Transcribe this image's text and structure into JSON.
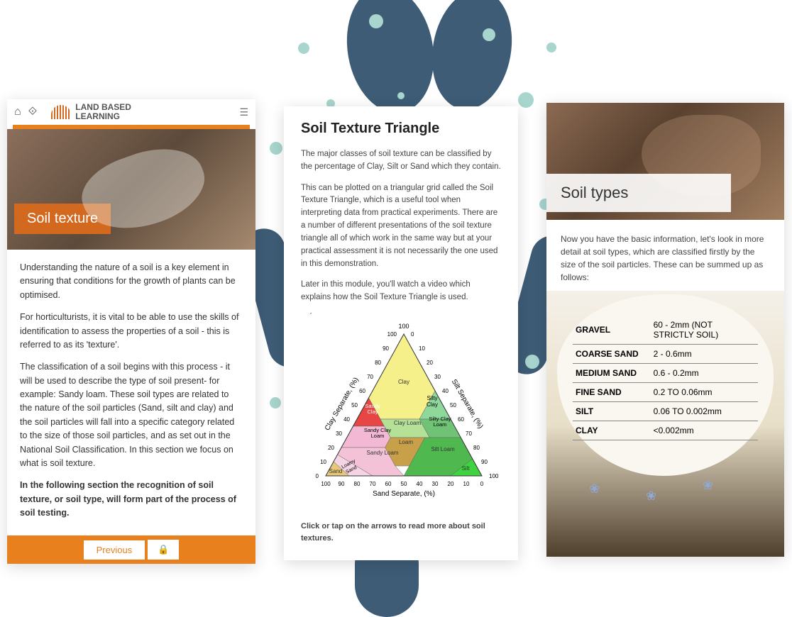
{
  "decorations": {
    "blob_color": "#3e5c76",
    "dot_color": "#a8d5ce"
  },
  "card1": {
    "brand_top": "LAND BASED",
    "brand_bottom": "LEARNING",
    "title": "Soil texture",
    "p1": "Understanding the nature of a soil is a key element in ensuring that conditions for the growth of plants can be optimised.",
    "p2": "For horticulturists, it is vital to be able to use the skills of identification to assess the properties of a soil - this is referred to as its 'texture'.",
    "p3": "The classification of a soil begins with this process - it will be used to describe the type of soil present- for example: Sandy loam. These soil types are related to the nature of the soil particles (Sand, silt and clay) and the soil particles will fall into a specific category related to the size of those soil particles, and as set out in the National Soil Classification. In this section we focus on what is soil texture.",
    "p4": "In the following section the recognition of soil texture, or soil type, will form part of the process of soil testing.",
    "prev_label": "Previous",
    "accent": "#e8801e"
  },
  "card2": {
    "title": "Soil Texture Triangle",
    "p1": "The major classes of soil texture can be classified by the percentage of Clay, Silt or Sand which they contain.",
    "p2": "This can be plotted on a triangular grid called the Soil Texture Triangle, which is a useful tool when interpreting data from practical experiments. There are a number of different presentations of the soil texture triangle all of which work in the same way but at your practical assessment it is not necessarily the one used in this demonstration.",
    "p3": "Later in this module, you'll watch a video which explains how the Soil Texture Triangle is used.",
    "hint": "Click or tap on the arrows to read more about soil textures.",
    "triangle": {
      "axis_top": "100",
      "ticks": [
        "10",
        "20",
        "30",
        "40",
        "50",
        "60",
        "70",
        "80",
        "90",
        "100"
      ],
      "left_label": "Clay Separate, (%)",
      "right_label": "Silt Separate, (%)",
      "bottom_label": "Sand Separate, (%)",
      "regions": [
        {
          "name": "Clay",
          "color": "#f5f08a"
        },
        {
          "name": "Silty Clay",
          "color": "#8fd89b"
        },
        {
          "name": "Sandy Clay",
          "color": "#e84545"
        },
        {
          "name": "Clay Loam",
          "color": "#b4e197"
        },
        {
          "name": "Silty Clay Loam",
          "color": "#6fc276"
        },
        {
          "name": "Sandy Clay Loam",
          "color": "#f2b8d4"
        },
        {
          "name": "Loam",
          "color": "#c9a04a"
        },
        {
          "name": "Sandy Loam",
          "color": "#f4c2d7"
        },
        {
          "name": "Silt Loam",
          "color": "#4fb84f"
        },
        {
          "name": "Loamy Sand",
          "color": "#f5d4e3"
        },
        {
          "name": "Sand",
          "color": "#e8c878"
        },
        {
          "name": "Silt",
          "color": "#3fd43f"
        }
      ]
    }
  },
  "card3": {
    "title": "Soil types",
    "intro": "Now you have the basic information, let's look in more detail at soil types, which are classified firstly by the size of the soil particles. These can be summed up as follows:",
    "rows": [
      {
        "k": "GRAVEL",
        "v": "60 - 2mm (NOT STRICTLY SOIL)"
      },
      {
        "k": "COARSE SAND",
        "v": "2 - 0.6mm"
      },
      {
        "k": "MEDIUM SAND",
        "v": "0.6  - 0.2mm"
      },
      {
        "k": "FINE SAND",
        "v": "0.2  TO 0.06mm"
      },
      {
        "k": "SILT",
        "v": "0.06 TO 0.002mm"
      },
      {
        "k": "CLAY",
        "v": "<0.002mm"
      }
    ]
  }
}
